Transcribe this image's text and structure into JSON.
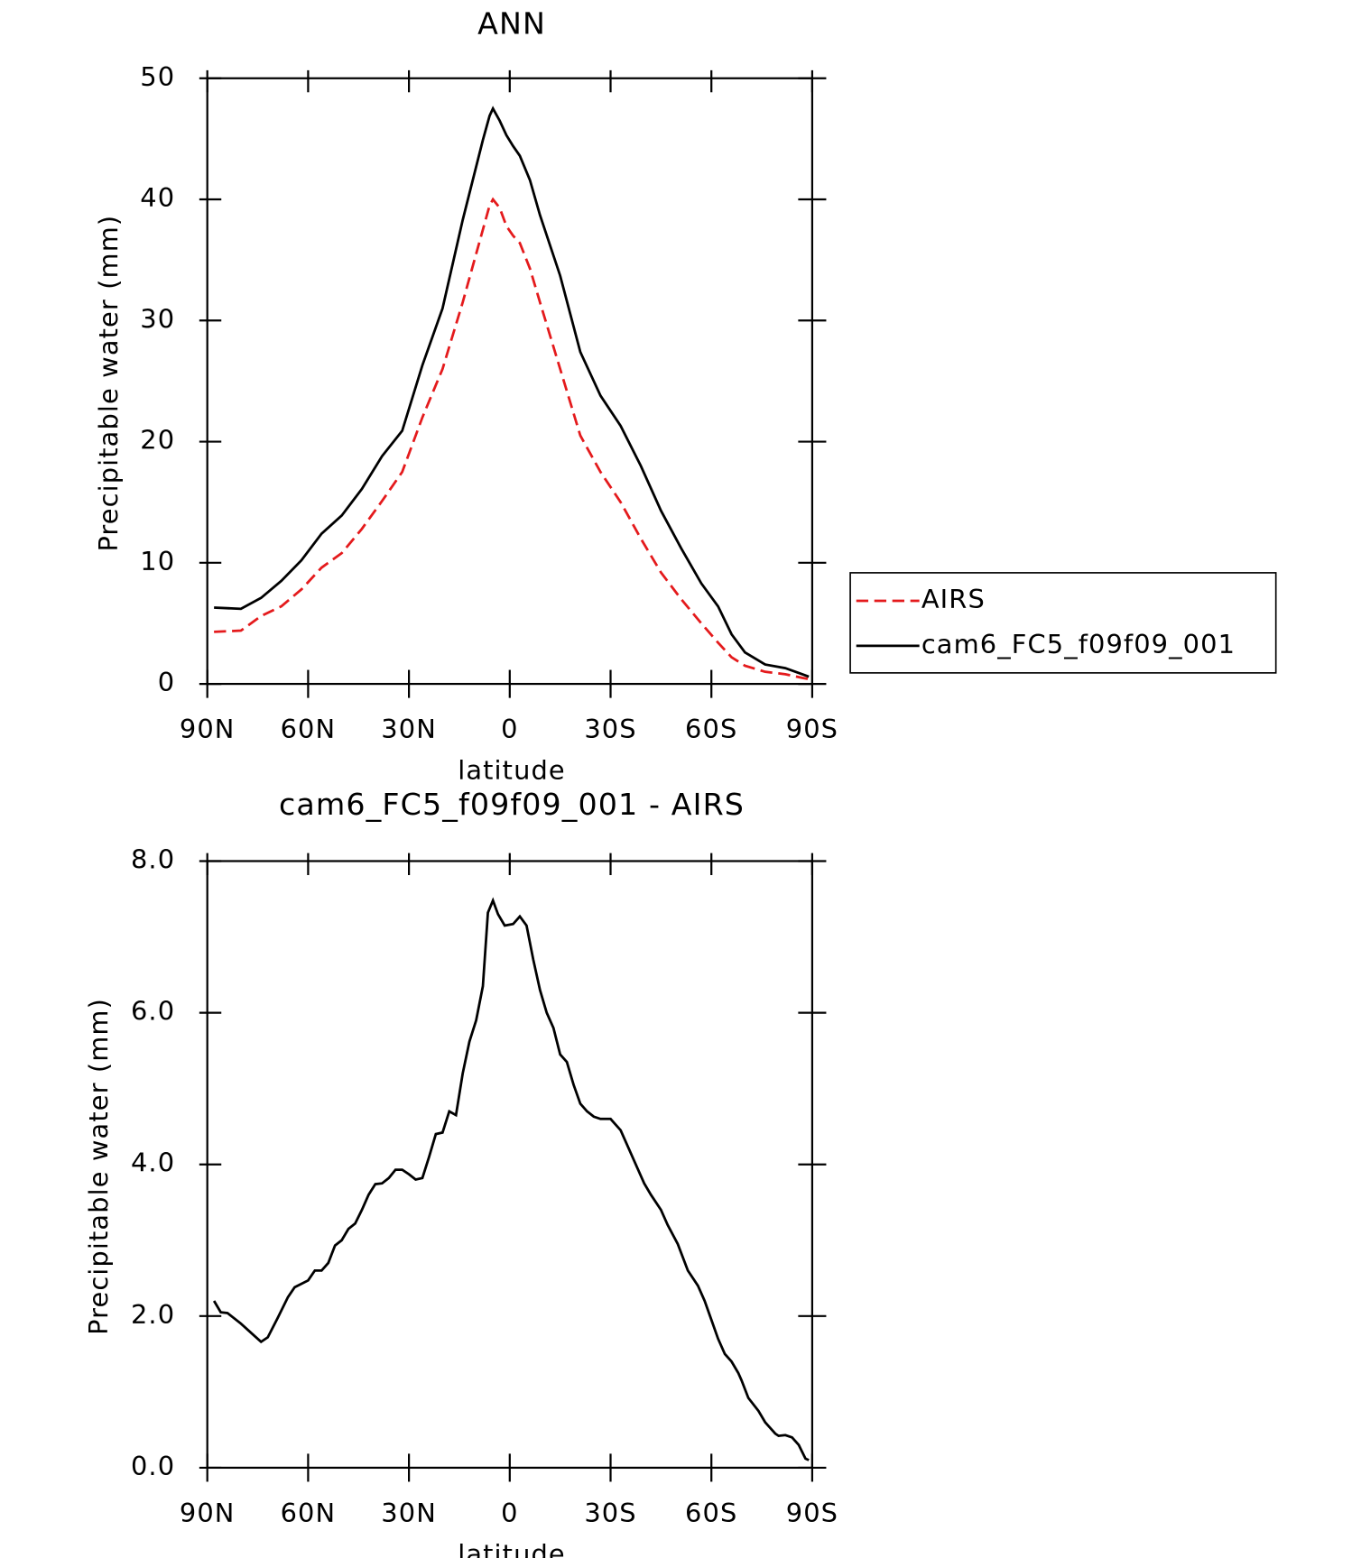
{
  "chart_data": [
    {
      "type": "line",
      "title": "ANN",
      "xlabel": "latitude",
      "ylabel": "Precipitable water (mm)",
      "x": [
        88,
        80,
        74,
        68,
        62,
        56,
        50,
        44,
        38,
        32,
        26,
        20,
        14,
        8,
        6,
        5,
        3,
        1,
        -1,
        -3,
        -6,
        -9,
        -15,
        -21,
        -27,
        -33,
        -39,
        -45,
        -51,
        -57,
        -62,
        -66,
        -70,
        -76,
        -82,
        -87,
        -89
      ],
      "series": [
        {
          "name": "AIRS",
          "color": "#e41a1c",
          "line_style": "dashed",
          "values": [
            4.3,
            4.4,
            5.6,
            6.4,
            7.8,
            9.6,
            10.8,
            12.8,
            15.1,
            17.5,
            22,
            26,
            31.5,
            37.5,
            39.5,
            40,
            39.3,
            37.8,
            37,
            36.4,
            34.3,
            31.5,
            26,
            20.5,
            17.5,
            15,
            12,
            9.2,
            7,
            5,
            3.4,
            2.2,
            1.5,
            1,
            0.8,
            0.5,
            0.4
          ]
        },
        {
          "name": "cam6_FC5_f09f09_001",
          "color": "#000000",
          "line_style": "solid",
          "values": [
            6.3,
            6.2,
            7.1,
            8.5,
            10.2,
            12.4,
            13.9,
            16.1,
            18.8,
            20.9,
            26.3,
            31,
            38.3,
            44.9,
            46.9,
            47.5,
            46.5,
            45.3,
            44.4,
            43.6,
            41.6,
            38.7,
            33.7,
            27.4,
            23.8,
            21.3,
            18,
            14.3,
            11.2,
            8.3,
            6.4,
            4.1,
            2.6,
            1.6,
            1.3,
            0.8,
            0.6
          ]
        }
      ],
      "xlim": [
        90,
        -90
      ],
      "xticks": [
        {
          "value": 90,
          "label": "90N"
        },
        {
          "value": 60,
          "label": "60N"
        },
        {
          "value": 30,
          "label": "30N"
        },
        0,
        {
          "value": -30,
          "label": "30S"
        },
        {
          "value": -60,
          "label": "60S"
        },
        {
          "value": -90,
          "label": "90S"
        }
      ],
      "ylim": [
        0,
        50
      ],
      "yticks": [
        0,
        10,
        20,
        30,
        40,
        50
      ],
      "legend": "right"
    },
    {
      "type": "line",
      "title": "cam6_FC5_f09f09_001 - AIRS",
      "xlabel": "latitude",
      "ylabel": "Precipitable water (mm)",
      "x": [
        88,
        86,
        84,
        80,
        76,
        74,
        72,
        69,
        66,
        64,
        60,
        58,
        56,
        54,
        52,
        50,
        48,
        46,
        44,
        42,
        40,
        38,
        36,
        34,
        32,
        30,
        28,
        26,
        24,
        22,
        20,
        18,
        16,
        14,
        12,
        10,
        8,
        6.5,
        5,
        3.5,
        1.5,
        -1,
        -3,
        -5,
        -7,
        -9,
        -11,
        -13,
        -15,
        -17,
        -19,
        -21,
        -23,
        -25,
        -27,
        -30,
        -33,
        -35,
        -38,
        -40,
        -42,
        -45,
        -47,
        -50,
        -53,
        -56,
        -58,
        -60,
        -62,
        -64,
        -66,
        -68,
        -69,
        -71,
        -74,
        -76,
        -79,
        -80,
        -82,
        -84,
        -86,
        -88,
        -89
      ],
      "series": [
        {
          "color": "#000000",
          "line_style": "solid",
          "values": [
            2.2,
            2.05,
            2.04,
            1.9,
            1.74,
            1.66,
            1.72,
            1.98,
            2.25,
            2.38,
            2.47,
            2.6,
            2.6,
            2.7,
            2.93,
            3.0,
            3.15,
            3.22,
            3.4,
            3.6,
            3.74,
            3.75,
            3.82,
            3.93,
            3.93,
            3.87,
            3.8,
            3.82,
            4.1,
            4.4,
            4.42,
            4.7,
            4.65,
            5.2,
            5.62,
            5.9,
            6.35,
            7.32,
            7.48,
            7.3,
            7.15,
            7.17,
            7.27,
            7.15,
            6.7,
            6.3,
            6.0,
            5.8,
            5.45,
            5.35,
            5.05,
            4.8,
            4.7,
            4.63,
            4.6,
            4.6,
            4.45,
            4.25,
            3.95,
            3.75,
            3.6,
            3.4,
            3.2,
            2.95,
            2.6,
            2.4,
            2.2,
            1.95,
            1.7,
            1.5,
            1.4,
            1.25,
            1.15,
            0.92,
            0.75,
            0.6,
            0.45,
            0.42,
            0.43,
            0.4,
            0.3,
            0.12,
            0.1
          ]
        }
      ],
      "xlim": [
        90,
        -90
      ],
      "xticks": [
        {
          "value": 90,
          "label": "90N"
        },
        {
          "value": 60,
          "label": "60N"
        },
        {
          "value": 30,
          "label": "30N"
        },
        0,
        {
          "value": -30,
          "label": "30S"
        },
        {
          "value": -60,
          "label": "60S"
        },
        {
          "value": -90,
          "label": "90S"
        }
      ],
      "ylim": [
        0,
        8
      ],
      "yticks": [
        {
          "value": 0,
          "label": "0.0"
        },
        {
          "value": 2,
          "label": "2.0"
        },
        {
          "value": 4,
          "label": "4.0"
        },
        {
          "value": 6,
          "label": "6.0"
        },
        {
          "value": 8,
          "label": "8.0"
        }
      ]
    }
  ]
}
